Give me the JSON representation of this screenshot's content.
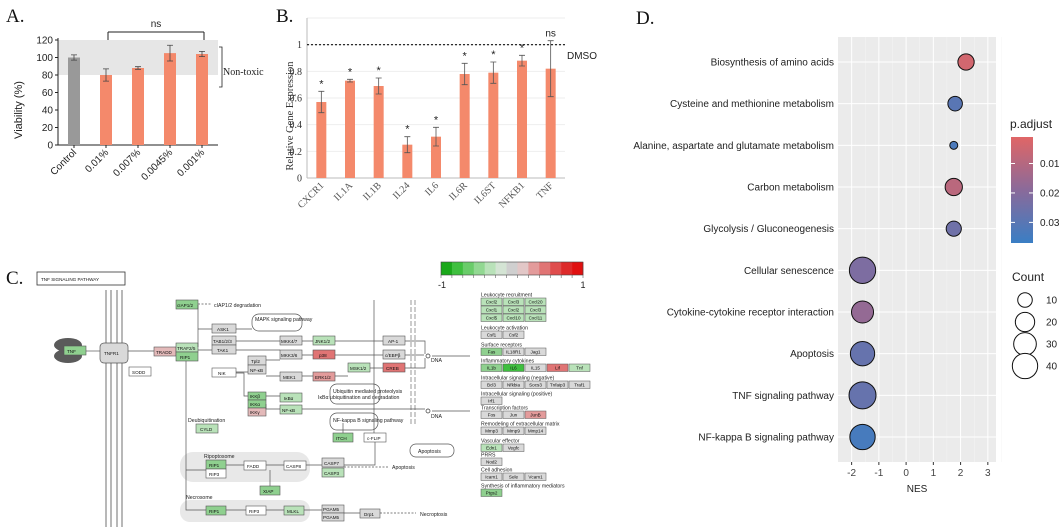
{
  "panels": {
    "a": {
      "letter": "A.",
      "ylabel": "Viability (%)",
      "ns_label": "ns",
      "region_label": "Non-toxic"
    },
    "b": {
      "letter": "B.",
      "ylabel": "Relative Gene Expression",
      "ref_label": "DMSO",
      "ns_label": "ns",
      "sig_label": "*"
    },
    "c": {
      "letter": "C.",
      "pathway_title": "TNF SIGNALING PATHWAY",
      "scale_min": "-1",
      "scale_max": "1",
      "scale_colors": [
        "#1aa81a",
        "#3fbf3f",
        "#6acc6a",
        "#92d892",
        "#b9e2b9",
        "#d4e4d4",
        "#cfcfcf",
        "#e2c7c7",
        "#e39b9b",
        "#e07474",
        "#df4c4c",
        "#dd2a2a",
        "#e01010"
      ]
    },
    "d": {
      "letter": "D.",
      "xlabel": "NES",
      "legend_color_title": "p.adjust",
      "legend_size_title": "Count"
    }
  },
  "chart_data": [
    {
      "id": "A",
      "type": "bar",
      "categories": [
        "Control",
        "0.01%",
        "0.007%",
        "0.0045%",
        "0.001%"
      ],
      "values": [
        100,
        80,
        88,
        105,
        104
      ],
      "errors": [
        3,
        7,
        1.5,
        9,
        3
      ],
      "ylabel": "Viability (%)",
      "ylim": [
        0,
        120
      ],
      "yticks": [
        0,
        20,
        40,
        60,
        80,
        100,
        120
      ],
      "non_toxic_band": [
        80,
        120
      ],
      "colors": {
        "control": "#999999",
        "treated": "#f4896b",
        "band": "#e6e6e6"
      }
    },
    {
      "id": "B",
      "type": "bar",
      "categories": [
        "CXCR1",
        "IL1A",
        "IL1B",
        "IL24",
        "IL6",
        "IL6R",
        "IL6ST",
        "NFKB1",
        "TNF"
      ],
      "values": [
        0.57,
        0.73,
        0.69,
        0.25,
        0.31,
        0.78,
        0.79,
        0.88,
        0.82
      ],
      "errors": [
        0.08,
        0.01,
        0.06,
        0.06,
        0.07,
        0.08,
        0.08,
        0.04,
        0.21
      ],
      "significance": [
        "*",
        "*",
        "*",
        "*",
        "*",
        "*",
        "*",
        "*",
        "ns"
      ],
      "reference_line": 1,
      "ylabel": "Relative Gene Expression",
      "ylim": [
        0,
        1.2
      ],
      "yticks": [
        0,
        0.2,
        0.4,
        0.6,
        0.8,
        1
      ],
      "colors": {
        "bar": "#f4896b"
      }
    },
    {
      "id": "D",
      "type": "scatter",
      "categories": [
        "Biosynthesis of amino acids",
        "Cysteine and methionine metabolism",
        "Alanine, aspartate and glutamate metabolism",
        "Carbon metabolism",
        "Glycolysis / Gluconeogenesis",
        "Cellular senescence",
        "Cytokine-cytokine receptor interaction",
        "Apoptosis",
        "TNF signaling pathway",
        "NF-kappa B signaling pathway"
      ],
      "x": [
        2.2,
        1.8,
        1.75,
        1.75,
        1.75,
        -1.6,
        -1.6,
        -1.6,
        -1.6,
        -1.6
      ],
      "count": [
        13,
        10,
        5,
        15,
        11,
        44,
        28,
        36,
        47,
        40
      ],
      "p_adjust": [
        0.004,
        0.03,
        0.033,
        0.009,
        0.025,
        0.022,
        0.017,
        0.027,
        0.027,
        0.034
      ],
      "xlabel": "NES",
      "xlim": [
        -2.5,
        3.3
      ],
      "xticks": [
        -2,
        -1,
        0,
        1,
        2,
        3
      ],
      "legend": {
        "color_title": "p.adjust",
        "color_ticks": [
          0.01,
          0.02,
          0.03
        ],
        "color_range": [
          0.037,
          0.001
        ],
        "size_title": "Count",
        "size_ticks": [
          10,
          20,
          30,
          40
        ],
        "size_range": [
          5,
          47
        ],
        "low_color": "#e06666",
        "high_color": "#3a7ec4",
        "placement": "right"
      },
      "grid": true
    }
  ],
  "pathway": {
    "labels": {
      "tnf": "TNF",
      "tnfr1": "TNFR1",
      "sodd": "SODD",
      "tradd": "TRADD",
      "traf2": "TRAF2/5",
      "rip1": "RIP1",
      "ciap": "cIAP1/2",
      "ciap_deg": "cIAP1/2 degradation",
      "ask1": "ASK1",
      "tab": "TAB1/2/3",
      "tak1": "TAK1",
      "mapk": "MAPK signaling pathway",
      "mkk47": "MKK4/7",
      "mkk36": "MKK3/6",
      "mek1": "MEK1",
      "jnk": "JNK1/2",
      "p38": "p38",
      "erk": "ERK1/2",
      "msk": "MSK1/2",
      "ap1": "AP-1",
      "cebp": "c/EBPβ",
      "creb": "CREB",
      "nik": "NIK",
      "tpl2": "Tpl2",
      "nfkb_up": "NF-κB",
      "ikkb": "IKKβ",
      "ikka": "IKKα",
      "ikkg": "IKKγ",
      "ikba": "IκBα",
      "nfkb": "NF-κB",
      "ub": "Ubiquitin mediated proteolysis",
      "ikba_deg": "IκBα ubiquitination and degradation",
      "nfkb_path": "NF-kappa B signaling pathway",
      "deub": "Deubiquitination",
      "cyld": "CYLD",
      "itch": "ITCH",
      "cflip": "c-FLIP",
      "apoptosis": "Apoptosis",
      "ripoptosome": "Ripoptosome",
      "rip1b": "RIP1",
      "rip3": "RIP3",
      "fadd": "FADD",
      "casp8": "CASP8",
      "casp7": "CASP7",
      "casp3": "CASP3",
      "xiap": "XIAP",
      "necrosome": "Necrosome",
      "rip1c": "RIP1",
      "rip3b": "RIP3",
      "mlkl": "MLKL",
      "pgam5": "PGAM5",
      "pgam5s": "PGAM5",
      "drp1": "Drp1",
      "necroptosis": "Necroptosis",
      "dna1": "DNA",
      "dna2": "DNA",
      "apoptosis2": "Apoptosis",
      "dna_star": "+p",
      "p1": "+p"
    },
    "targets": {
      "leuko_recruit": "Leukocyte recruitment",
      "leuko_genes": [
        "Cxcl2",
        "Cxcl3",
        "Cxcl20",
        "Cxcl1",
        "Cxcl2",
        "Cxcl3",
        "Cxcl5",
        "Cxcl10",
        "Cxcl11"
      ],
      "leuko_activ": "Leukocyte activation",
      "activ_genes": [
        "Csf1",
        "Csf2"
      ],
      "surface": "Surface receptors",
      "surface_genes": [
        "Fas",
        "IL18R1",
        "Jag1"
      ],
      "inflam": "Inflammatory cytokines",
      "inflam_genes": [
        "IL1b",
        "IL6",
        "IL15",
        "Lif",
        "Tnf"
      ],
      "signal_neg": "Intracellular signaling (negative)",
      "neg_genes": [
        "Bcl3",
        "Nfkbia",
        "Socs3",
        "Tnfaip3",
        "Traf1"
      ],
      "signal_pos": "Intracellular signaling (positive)",
      "pos_genes": [
        "Irf1"
      ],
      "transcription": "Transcription factors",
      "tf_genes": [
        "Fos",
        "Jun",
        "JunB"
      ],
      "remodel": "Remodeling of extracellular matrix",
      "remodel_genes": [
        "Mmp3",
        "Mmp9",
        "Mmp14"
      ],
      "vascular": "Vascular effector",
      "vascular_genes": [
        "Edn1",
        "Vegfc"
      ],
      "prrs": "PRRS",
      "prrs_genes": [
        "Nod2"
      ],
      "adhesion": "Cell adhesion",
      "adhesion_genes": [
        "Icam1",
        "Sele",
        "Vcam1"
      ],
      "synth": "Synthesis of inflammatory mediators",
      "synth_genes": [
        "Ptgs2"
      ]
    }
  }
}
